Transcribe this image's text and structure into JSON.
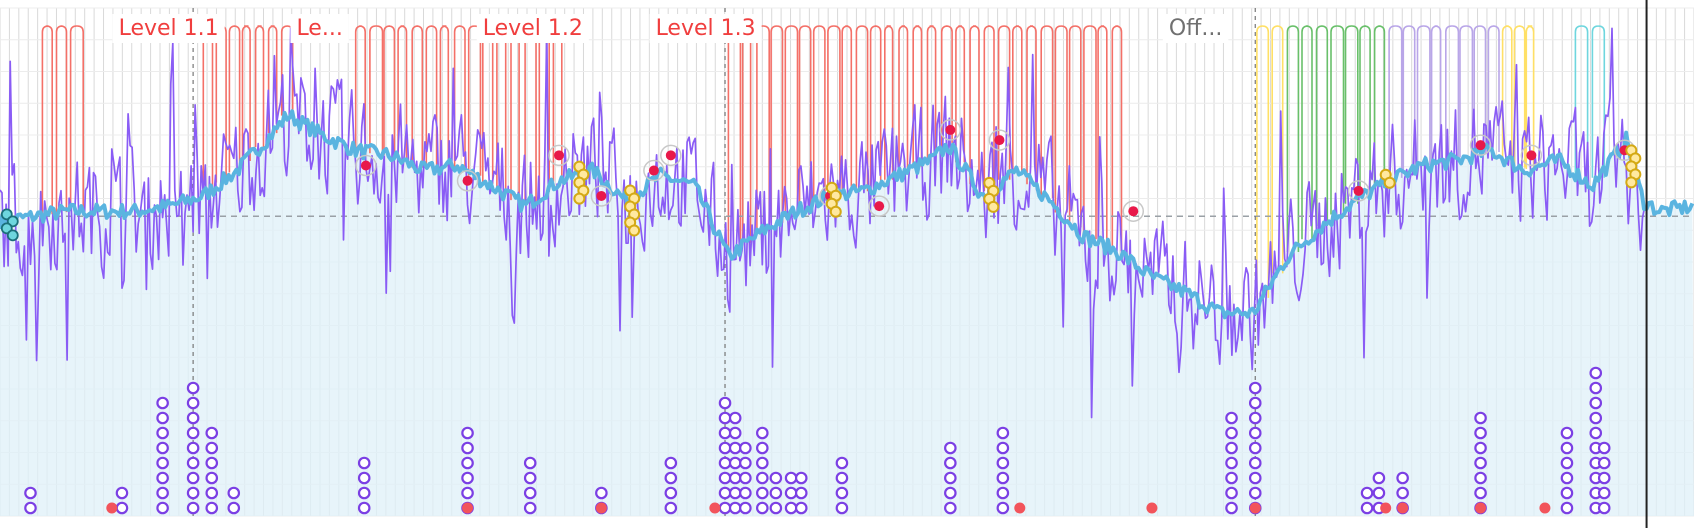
{
  "chart_data": {
    "type": "line",
    "title": "",
    "xlabel": "",
    "ylabel": "",
    "grid": true,
    "legend": "none",
    "x_range": [
      0,
      100
    ],
    "y_range": [
      0,
      100
    ],
    "reference_line_y": 59,
    "cursor_x": 97.2,
    "level_labels": [
      {
        "text": "Level 1.1",
        "x": 7.0,
        "color": "#f03e3e"
      },
      {
        "text": "Le...",
        "x": 17.5,
        "color": "#f03e3e"
      },
      {
        "text": "Level 1.2",
        "x": 28.5,
        "color": "#f03e3e"
      },
      {
        "text": "Level 1.3",
        "x": 38.7,
        "color": "#f03e3e"
      },
      {
        "text": "Off...",
        "x": 69.0,
        "color": "#707070"
      }
    ],
    "segment_dividers_x": [
      11.4,
      42.8,
      74.1
    ],
    "blue_smooth_series": {
      "name": "",
      "color": "#5ab4e0",
      "x": [
        0,
        2,
        4,
        6,
        8,
        10,
        12,
        14,
        16,
        17,
        19,
        21,
        23,
        25,
        27,
        29,
        31,
        33,
        35,
        37,
        39,
        41,
        43,
        45,
        47,
        49,
        51,
        53,
        55,
        56,
        58,
        60,
        62,
        64,
        66,
        68,
        70,
        72,
        74,
        76,
        78,
        80,
        82,
        84,
        86,
        88,
        90,
        92,
        94,
        96,
        97,
        98,
        100
      ],
      "y": [
        58,
        59,
        60,
        60,
        60,
        61,
        63,
        68,
        75,
        79,
        75,
        72,
        71,
        68,
        69,
        65,
        61,
        66,
        68,
        62,
        67,
        65,
        51,
        56,
        60,
        63,
        64,
        67,
        70,
        73,
        63,
        68,
        62,
        55,
        52,
        47,
        44,
        40,
        40,
        51,
        57,
        62,
        66,
        69,
        70,
        72,
        68,
        70,
        65,
        74,
        62,
        60,
        61
      ]
    },
    "purple_noisy_series": {
      "name": "",
      "color": "#8a5cf5",
      "seed": 7
    },
    "area_fill_color": "#dff0f8",
    "red_markers": [
      {
        "x": 21.6,
        "y": 69
      },
      {
        "x": 27.6,
        "y": 66
      },
      {
        "x": 33.0,
        "y": 71
      },
      {
        "x": 35.5,
        "y": 63
      },
      {
        "x": 38.6,
        "y": 68
      },
      {
        "x": 39.6,
        "y": 71
      },
      {
        "x": 49.0,
        "y": 63
      },
      {
        "x": 51.9,
        "y": 61
      },
      {
        "x": 56.1,
        "y": 76
      },
      {
        "x": 59.0,
        "y": 74
      },
      {
        "x": 66.9,
        "y": 60
      },
      {
        "x": 80.2,
        "y": 64
      },
      {
        "x": 87.4,
        "y": 73
      },
      {
        "x": 90.4,
        "y": 71
      },
      {
        "x": 95.9,
        "y": 72
      }
    ],
    "yellow_marker_clusters": [
      {
        "x": 34.2,
        "count": 5
      },
      {
        "x": 37.2,
        "count": 6
      },
      {
        "x": 49.1,
        "count": 4
      },
      {
        "x": 58.4,
        "count": 4
      },
      {
        "x": 81.8,
        "count": 2
      },
      {
        "x": 96.3,
        "count": 5
      }
    ],
    "teal_marker_cluster": {
      "x": 0.4,
      "count": 4
    },
    "event_columns": [
      {
        "x": 1.8,
        "count": 2
      },
      {
        "x": 7.2,
        "count": 2
      },
      {
        "x": 9.6,
        "count": 8
      },
      {
        "x": 11.4,
        "count": 9
      },
      {
        "x": 12.5,
        "count": 6
      },
      {
        "x": 13.8,
        "count": 2
      },
      {
        "x": 21.5,
        "count": 4
      },
      {
        "x": 27.6,
        "count": 6
      },
      {
        "x": 31.3,
        "count": 4
      },
      {
        "x": 35.5,
        "count": 2
      },
      {
        "x": 39.6,
        "count": 4
      },
      {
        "x": 42.8,
        "count": 8
      },
      {
        "x": 43.4,
        "count": 7
      },
      {
        "x": 44.0,
        "count": 5
      },
      {
        "x": 45.0,
        "count": 6
      },
      {
        "x": 45.8,
        "count": 3
      },
      {
        "x": 46.7,
        "count": 3
      },
      {
        "x": 47.3,
        "count": 3
      },
      {
        "x": 49.7,
        "count": 4
      },
      {
        "x": 56.1,
        "count": 5
      },
      {
        "x": 59.2,
        "count": 6
      },
      {
        "x": 72.7,
        "count": 7
      },
      {
        "x": 74.1,
        "count": 9
      },
      {
        "x": 80.7,
        "count": 2
      },
      {
        "x": 81.4,
        "count": 3
      },
      {
        "x": 82.8,
        "count": 3
      },
      {
        "x": 87.4,
        "count": 7
      },
      {
        "x": 92.5,
        "count": 6
      },
      {
        "x": 94.2,
        "count": 10
      },
      {
        "x": 94.7,
        "count": 5
      }
    ],
    "level_step_series": [
      {
        "color": "#f47068",
        "x_start": 2.5,
        "x_end": 5.0
      },
      {
        "color": "#f47068",
        "x_start": 12.0,
        "x_end": 17.4
      },
      {
        "color": "#f47068",
        "x_start": 21.0,
        "x_end": 33.5
      },
      {
        "color": "#f47068",
        "x_start": 43.0,
        "x_end": 66.5
      },
      {
        "color": "#ffe066",
        "x_start": 74.2,
        "x_end": 76.0
      },
      {
        "color": "#69c06a",
        "x_start": 76.0,
        "x_end": 82.0
      },
      {
        "color": "#b9a6e8",
        "x_start": 82.0,
        "x_end": 88.7
      },
      {
        "color": "#ffe066",
        "x_start": 88.7,
        "x_end": 90.8
      },
      {
        "color": "#6ed6de",
        "x_start": 93.0,
        "x_end": 95.0
      }
    ]
  }
}
